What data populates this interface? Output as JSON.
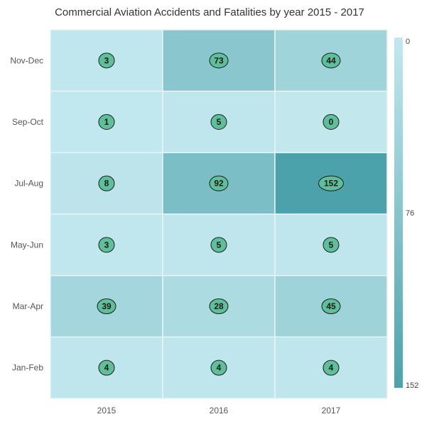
{
  "chart_data": {
    "type": "heatmap",
    "title": "Commercial Aviation Accidents and Fatalities by year 2015 - 2017",
    "x_categories": [
      "2015",
      "2016",
      "2017"
    ],
    "y_categories": [
      "Nov-Dec",
      "Sep-Oct",
      "Jul-Aug",
      "May-Jun",
      "Mar-Apr",
      "Jan-Feb"
    ],
    "values": [
      [
        3,
        73,
        44
      ],
      [
        1,
        5,
        0
      ],
      [
        8,
        92,
        152
      ],
      [
        3,
        5,
        5
      ],
      [
        39,
        28,
        45
      ],
      [
        4,
        4,
        4
      ]
    ],
    "color_scale": {
      "min": 0,
      "mid": 76,
      "max": 152,
      "min_color": "#c2e8ee",
      "max_color": "#4ca2ab",
      "labels": [
        "0",
        "76",
        "152"
      ]
    },
    "label_marker_color": "#5fbf9b",
    "legend_placement": "right"
  }
}
